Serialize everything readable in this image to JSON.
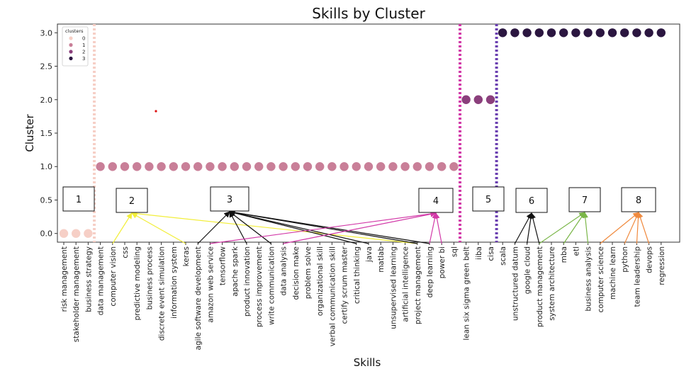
{
  "chart_data": {
    "type": "scatter",
    "title": "Skills by Cluster",
    "xlabel": "Skills",
    "ylabel": "Cluster",
    "ylim": [
      -0.13,
      3.13
    ],
    "yticks": [
      "0.0",
      "0.5",
      "1.0",
      "1.5",
      "2.0",
      "2.5",
      "3.0"
    ],
    "grid": false,
    "legend": {
      "title": "clusters",
      "placement": "top-left",
      "entries": [
        {
          "label": "0",
          "color": "#f6cfc6"
        },
        {
          "label": "1",
          "color": "#c97f98"
        },
        {
          "label": "2",
          "color": "#8b3f7c"
        },
        {
          "label": "3",
          "color": "#2b1640"
        }
      ]
    },
    "cluster_colors": [
      "#f6cfc6",
      "#c97f98",
      "#8b3f7c",
      "#2b1640"
    ],
    "categories": [
      "risk management",
      "stakeholder management",
      "business strategy",
      "data management",
      "computer vision",
      "css",
      "predictive modeling",
      "business process",
      "discrete event simulation",
      "information system",
      "keras",
      "agile software development",
      "amazon web service",
      "tensorflow",
      "apache spark",
      "product innovation",
      "process improvement",
      "write communication",
      "data analysis",
      "decision make",
      "problem solve",
      "organizational skill",
      "verbal communication skill",
      "certify scrum master",
      "critical thinking",
      "java",
      "matlab",
      "unsupervised learning",
      "artificial intelligence",
      "project management",
      "deep learning",
      "power bi",
      "sql",
      "lean six sigma green belt",
      "iiba",
      "cisa",
      "scala",
      "unstructured datum",
      "google cloud",
      "product management",
      "system architecture",
      "mba",
      "etl",
      "business analysis",
      "computer science",
      "machine learn",
      "python",
      "team leadership",
      "devops",
      "regression"
    ],
    "values": [
      0,
      0,
      0,
      1,
      1,
      1,
      1,
      1,
      1,
      1,
      1,
      1,
      1,
      1,
      1,
      1,
      1,
      1,
      1,
      1,
      1,
      1,
      1,
      1,
      1,
      1,
      1,
      1,
      1,
      1,
      1,
      1,
      1,
      2,
      2,
      2,
      3,
      3,
      3,
      3,
      3,
      3,
      3,
      3,
      3,
      3,
      3,
      3,
      3,
      3
    ],
    "separators": [
      {
        "after_index": 2,
        "color": "#f6cfc6"
      },
      {
        "after_index": 32,
        "color": "#d23aa8"
      },
      {
        "after_index": 35,
        "color": "#6a3fb0"
      }
    ],
    "annotations": [
      {
        "label": "1",
        "color": null,
        "targets": []
      },
      {
        "label": "2",
        "color": "#f2ee3a",
        "targets": [
          4,
          10,
          29
        ]
      },
      {
        "label": "3",
        "color": "#111111",
        "targets": [
          11,
          15,
          17,
          24,
          25,
          29,
          30
        ]
      },
      {
        "label": "4",
        "color": "#d23aa8",
        "targets": [
          12,
          18,
          30,
          31
        ]
      },
      {
        "label": "5",
        "color": null,
        "targets": []
      },
      {
        "label": "6",
        "color": "#111111",
        "targets": [
          37,
          38,
          39
        ]
      },
      {
        "label": "7",
        "color": "#7ab648",
        "targets": [
          39,
          41,
          43
        ]
      },
      {
        "label": "8",
        "color": "#f08a3e",
        "targets": [
          44,
          46,
          47,
          48
        ]
      }
    ]
  }
}
